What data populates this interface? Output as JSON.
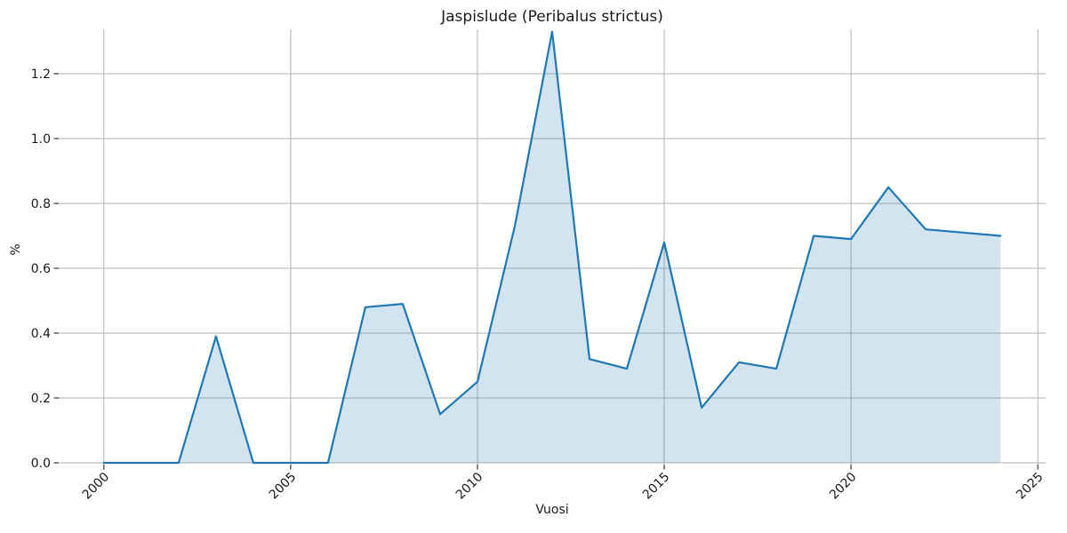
{
  "chart_data": {
    "type": "area",
    "title": "Jaspislude (Peribalus strictus)",
    "xlabel": "Vuosi",
    "ylabel": "%",
    "x": [
      2000,
      2001,
      2002,
      2003,
      2004,
      2005,
      2006,
      2007,
      2008,
      2009,
      2010,
      2011,
      2012,
      2013,
      2014,
      2015,
      2016,
      2017,
      2018,
      2019,
      2020,
      2021,
      2022,
      2023,
      2024
    ],
    "values": [
      0.0,
      0.0,
      0.0,
      0.39,
      0.0,
      0.0,
      0.0,
      0.48,
      0.49,
      0.15,
      0.25,
      0.73,
      1.33,
      0.32,
      0.29,
      0.68,
      0.17,
      0.31,
      0.29,
      0.7,
      0.69,
      0.85,
      0.72,
      0.71,
      0.7
    ],
    "xticks": [
      2000,
      2005,
      2010,
      2015,
      2020,
      2025
    ],
    "yticks": [
      0.0,
      0.2,
      0.4,
      0.6,
      0.8,
      1.0,
      1.2
    ],
    "xlim": [
      1998.79,
      2025.21
    ],
    "ylim": [
      -0.0055,
      1.337
    ],
    "grid": true,
    "legend": "none",
    "line_color": "#1f77b4",
    "line_width": 2.2,
    "fill_color": "#1f77b4",
    "fill_opacity": 0.2,
    "grid_color": "#b2b2b2",
    "tick_color": "#333333",
    "text_color": "#1a1a1a",
    "background": "#ffffff"
  }
}
